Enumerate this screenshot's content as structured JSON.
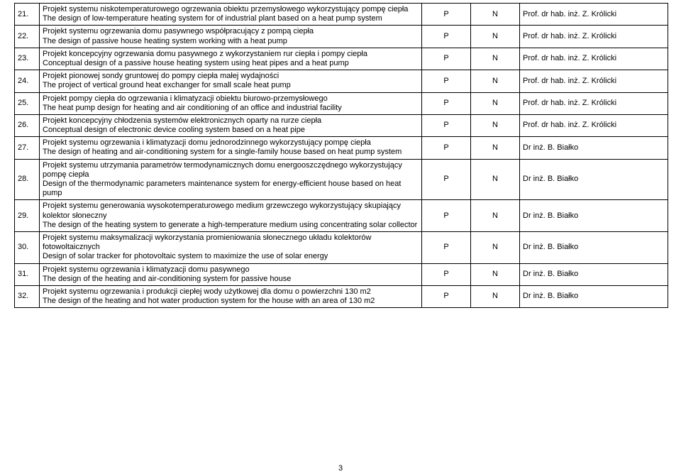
{
  "page_number": "3",
  "columns": {
    "p": "P",
    "n": "N"
  },
  "supervisors": {
    "krolicki": "Prof. dr hab. inż. Z. Królicki",
    "bialko": "Dr inż. B. Białko"
  },
  "rows": [
    {
      "num": "21.",
      "pl": "Projekt systemu niskotemperaturowego ogrzewania obiektu przemysłowego wykorzystujący pompę ciepła",
      "en": "The design of low-temperature heating system for of industrial plant based on a heat pump system",
      "sup": "krolicki"
    },
    {
      "num": "22.",
      "pl": "Projekt systemu ogrzewania domu pasywnego współpracujący z pompą ciepła",
      "en": "The design of passive house heating system working with a heat pump",
      "sup": "krolicki"
    },
    {
      "num": "23.",
      "pl": "Projekt koncepcyjny ogrzewania domu pasywnego z wykorzystaniem rur ciepła i pompy ciepła",
      "en": "Conceptual design of a passive house heating system using heat pipes and a heat pump",
      "sup": "krolicki"
    },
    {
      "num": "24.",
      "pl": "Projekt pionowej sondy gruntowej do pompy ciepła małej wydajności",
      "en": "The project of vertical ground heat exchanger for small scale heat pump",
      "sup": "krolicki"
    },
    {
      "num": "25.",
      "pl": "Projekt pompy ciepła do ogrzewania i klimatyzacji obiektu biurowo-przemysłowego",
      "en": "The heat pump design for heating and air conditioning of an office and industrial facility",
      "sup": "krolicki"
    },
    {
      "num": "26.",
      "pl": "Projekt koncepcyjny chłodzenia systemów elektronicznych oparty na rurze ciepła",
      "en": "Conceptual design of electronic device cooling system based on a heat pipe",
      "sup": "krolicki"
    },
    {
      "num": "27.",
      "pl": "Projekt systemu ogrzewania i klimatyzacji domu jednorodzinnego wykorzystujący pompę ciepła",
      "en": "The design of heating and air-conditioning system for a single-family house based on heat pump system",
      "sup": "bialko"
    },
    {
      "num": "28.",
      "pl": "Projekt systemu utrzymania parametrów termodynamicznych domu energooszczędnego wykorzystujący pompę ciepła",
      "en": "Design of the thermodynamic parameters maintenance system for energy-efficient house based on heat pump",
      "sup": "bialko"
    },
    {
      "num": "29.",
      "pl": "Projekt systemu generowania wysokotemperaturowego medium grzewczego wykorzystujący skupiający kolektor słoneczny",
      "en": "The design of the heating system to generate a high-temperature medium using concentrating solar collector",
      "sup": "bialko"
    },
    {
      "num": "30.",
      "pl": "Projekt systemu maksymalizacji wykorzystania promieniowania słonecznego układu kolektorów fotowoltaicznych",
      "en": "Design of solar tracker for photovoltaic system to maximize the use of solar energy",
      "sup": "bialko"
    },
    {
      "num": "31.",
      "pl": "Projekt systemu ogrzewania i klimatyzacji domu pasywnego",
      "en": "The design of the heating and air-conditioning system for passive house",
      "sup": "bialko"
    },
    {
      "num": "32.",
      "pl": "Projekt systemu ogrzewania i produkcji ciepłej wody użytkowej dla domu o powierzchni 130 m2",
      "en": "The design of the heating and hot water production system for the house with an area of 130 m2",
      "sup": "bialko"
    }
  ]
}
